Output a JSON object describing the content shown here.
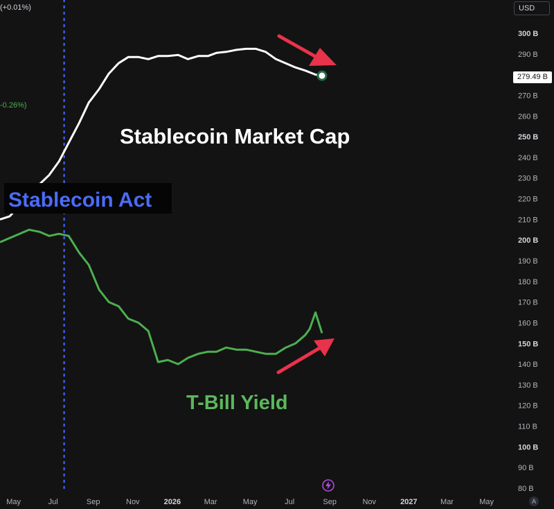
{
  "legend": {
    "top_change": "(+0.01%)",
    "green_change": "-0.26%)"
  },
  "currency": "USD",
  "last_value_label": "279.49 B",
  "auto_button": "A",
  "annotations": {
    "market_cap_label": "Stablecoin Market Cap",
    "act_label": "Stablecoin Act",
    "tbill_label": "T-Bill Yield"
  },
  "colors": {
    "background": "#131313",
    "market_cap_line": "#ffffff",
    "tbill_line": "#4caf50",
    "act_line": "#3f5df0",
    "act_text": "#4a6cf7",
    "arrow": "#e8334a",
    "tbill_text": "#5cb85c"
  },
  "chart_data": {
    "type": "line",
    "y_axis": {
      "unit": "B",
      "min": 80,
      "max": 300,
      "ticks": [
        {
          "value": 300,
          "label": "300 B",
          "bold": true
        },
        {
          "value": 290,
          "label": "290 B",
          "bold": false
        },
        {
          "value": 270,
          "label": "270 B",
          "bold": false
        },
        {
          "value": 260,
          "label": "260 B",
          "bold": false
        },
        {
          "value": 250,
          "label": "250 B",
          "bold": true
        },
        {
          "value": 240,
          "label": "240 B",
          "bold": false
        },
        {
          "value": 230,
          "label": "230 B",
          "bold": false
        },
        {
          "value": 220,
          "label": "220 B",
          "bold": false
        },
        {
          "value": 210,
          "label": "210 B",
          "bold": false
        },
        {
          "value": 200,
          "label": "200 B",
          "bold": true
        },
        {
          "value": 190,
          "label": "190 B",
          "bold": false
        },
        {
          "value": 180,
          "label": "180 B",
          "bold": false
        },
        {
          "value": 170,
          "label": "170 B",
          "bold": false
        },
        {
          "value": 160,
          "label": "160 B",
          "bold": false
        },
        {
          "value": 150,
          "label": "150 B",
          "bold": true
        },
        {
          "value": 140,
          "label": "140 B",
          "bold": false
        },
        {
          "value": 130,
          "label": "130 B",
          "bold": false
        },
        {
          "value": 120,
          "label": "120 B",
          "bold": false
        },
        {
          "value": 110,
          "label": "110 B",
          "bold": false
        },
        {
          "value": 100,
          "label": "100 B",
          "bold": true
        },
        {
          "value": 90,
          "label": "90 B",
          "bold": false
        },
        {
          "value": 80,
          "label": "80 B",
          "bold": false
        }
      ]
    },
    "x_axis": {
      "min": "2025-04-10",
      "max": "2027-06-10",
      "ticks": [
        {
          "date": "2025-05-01",
          "label": "May",
          "bold": false
        },
        {
          "date": "2025-07-01",
          "label": "Jul",
          "bold": false
        },
        {
          "date": "2025-09-01",
          "label": "Sep",
          "bold": false
        },
        {
          "date": "2025-11-01",
          "label": "Nov",
          "bold": false
        },
        {
          "date": "2026-01-01",
          "label": "2026",
          "bold": true
        },
        {
          "date": "2026-03-01",
          "label": "Mar",
          "bold": false
        },
        {
          "date": "2026-05-01",
          "label": "May",
          "bold": false
        },
        {
          "date": "2026-07-01",
          "label": "Jul",
          "bold": false
        },
        {
          "date": "2026-09-01",
          "label": "Sep",
          "bold": false
        },
        {
          "date": "2026-11-01",
          "label": "Nov",
          "bold": false
        },
        {
          "date": "2027-01-01",
          "label": "2027",
          "bold": true
        },
        {
          "date": "2027-03-01",
          "label": "Mar",
          "bold": false
        },
        {
          "date": "2027-05-01",
          "label": "May",
          "bold": false
        }
      ]
    },
    "event_date": "2025-07-18",
    "series": [
      {
        "name": "Stablecoin Market Cap",
        "x": [
          "2025-04-10",
          "2025-04-25",
          "2025-05-10",
          "2025-05-25",
          "2025-06-10",
          "2025-06-25",
          "2025-07-10",
          "2025-07-25",
          "2025-08-10",
          "2025-08-25",
          "2025-09-10",
          "2025-09-25",
          "2025-10-10",
          "2025-10-25",
          "2025-11-10",
          "2025-11-25",
          "2025-12-10",
          "2025-12-25",
          "2026-01-10",
          "2026-01-25",
          "2026-02-10",
          "2026-02-25",
          "2026-03-10",
          "2026-03-25",
          "2026-04-10",
          "2026-04-25",
          "2026-05-10",
          "2026-05-25",
          "2026-06-10",
          "2026-06-25",
          "2026-07-10",
          "2026-07-25",
          "2026-08-10",
          "2026-08-20"
        ],
        "values": [
          210.0,
          211.5,
          216.5,
          223.0,
          227.0,
          231.5,
          238.0,
          247.0,
          256.5,
          266.5,
          273.0,
          280.5,
          285.5,
          288.5,
          288.5,
          287.5,
          289.0,
          289.0,
          289.5,
          287.5,
          289.0,
          289.0,
          290.5,
          291.0,
          292.0,
          292.5,
          292.5,
          291.0,
          287.5,
          285.5,
          283.5,
          282.0,
          280.0,
          279.49
        ]
      },
      {
        "name": "T-Bill Yield",
        "x": [
          "2025-04-10",
          "2025-04-25",
          "2025-05-10",
          "2025-05-25",
          "2025-06-10",
          "2025-06-25",
          "2025-07-10",
          "2025-07-25",
          "2025-08-10",
          "2025-08-25",
          "2025-09-10",
          "2025-09-25",
          "2025-10-10",
          "2025-10-25",
          "2025-11-10",
          "2025-11-25",
          "2025-12-10",
          "2025-12-25",
          "2026-01-10",
          "2026-01-25",
          "2026-02-10",
          "2026-02-25",
          "2026-03-10",
          "2026-03-25",
          "2026-04-10",
          "2026-04-25",
          "2026-05-10",
          "2026-05-25",
          "2026-06-10",
          "2026-06-25",
          "2026-07-10",
          "2026-07-25",
          "2026-08-01",
          "2026-08-10",
          "2026-08-20"
        ],
        "values": [
          199.0,
          201.0,
          203.0,
          205.0,
          204.0,
          202.0,
          203.0,
          202.0,
          194.0,
          188.0,
          176.0,
          170.0,
          168.0,
          162.0,
          160.0,
          156.0,
          141.0,
          142.0,
          140.0,
          143.0,
          145.0,
          146.0,
          146.0,
          148.0,
          147.0,
          147.0,
          146.0,
          145.0,
          145.0,
          148.0,
          150.0,
          154.0,
          157.0,
          165.0,
          155.0
        ]
      }
    ]
  }
}
